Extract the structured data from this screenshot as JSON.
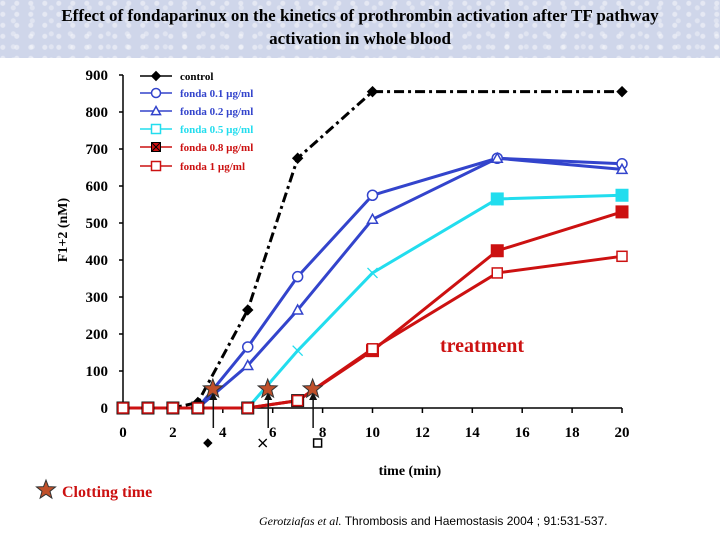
{
  "chart_data": {
    "type": "line",
    "title_lines": [
      "Effect of fondaparinux on the kinetics of prothrombin activation after TF pathway",
      "activation in whole blood"
    ],
    "xlabel": "time (min)",
    "ylabel": "F1+2 (nM)",
    "xlim": [
      0,
      20
    ],
    "ylim": [
      0,
      900
    ],
    "xticks": [
      0,
      2,
      4,
      6,
      8,
      10,
      12,
      14,
      16,
      18,
      20
    ],
    "yticks": [
      0,
      100,
      200,
      300,
      400,
      500,
      600,
      700,
      800,
      900
    ],
    "legend_position": "top-left",
    "series": [
      {
        "name": "control",
        "color": "#000000",
        "marker": "diamond",
        "dash": "dashdot",
        "x": [
          0,
          1,
          2,
          3,
          5,
          7,
          10,
          20
        ],
        "y": [
          0,
          0,
          0,
          15,
          265,
          675,
          855,
          855
        ]
      },
      {
        "name": "fonda 0.1 µg/ml",
        "color": "#3344cc",
        "marker": "circle-open",
        "x": [
          0,
          2,
          3,
          5,
          7,
          10,
          15,
          20
        ],
        "y": [
          0,
          0,
          0,
          165,
          355,
          575,
          675,
          660
        ]
      },
      {
        "name": "fonda 0.2 µg/ml",
        "color": "#3344cc",
        "marker": "triangle-open",
        "x": [
          0,
          2,
          3,
          5,
          7,
          10,
          15,
          20
        ],
        "y": [
          0,
          0,
          0,
          115,
          265,
          510,
          675,
          645
        ]
      },
      {
        "name": "fonda 0.5 µg/ml",
        "color": "#22ddee",
        "marker": "square-open",
        "x": [
          0,
          2,
          3,
          5,
          7,
          10,
          15,
          20
        ],
        "y": [
          0,
          0,
          0,
          0,
          155,
          365,
          565,
          575
        ]
      },
      {
        "name": "fonda 0.8 µg/ml",
        "color": "#cc1111",
        "marker": "square-x",
        "x": [
          0,
          1,
          2,
          3,
          5,
          7,
          10,
          15,
          20
        ],
        "y": [
          0,
          0,
          0,
          0,
          0,
          20,
          155,
          425,
          530
        ]
      },
      {
        "name": "fonda 1 µg/ml",
        "color": "#cc1111",
        "marker": "square-open",
        "x": [
          0,
          1,
          2,
          3,
          5,
          7,
          10,
          15,
          20
        ],
        "y": [
          0,
          0,
          0,
          0,
          0,
          20,
          160,
          365,
          410
        ]
      }
    ],
    "clotting_times": [
      3.6,
      5.8,
      7.6
    ],
    "clotting_markers": [
      {
        "x": 3.4,
        "marker": "diamond"
      },
      {
        "x": 5.6,
        "marker": "x"
      },
      {
        "x": 7.8,
        "marker": "square-open"
      }
    ],
    "annotations": {
      "treatment": "treatment",
      "clotting_time": "Clotting time"
    },
    "colors": {
      "treatment": "#cc1111",
      "clotting_star": "#c0502a"
    }
  },
  "citation": {
    "authors": "Gerotziafas et al.",
    "journal": "Thrombosis and Haemostasis 2004 ; 91:531-537."
  }
}
